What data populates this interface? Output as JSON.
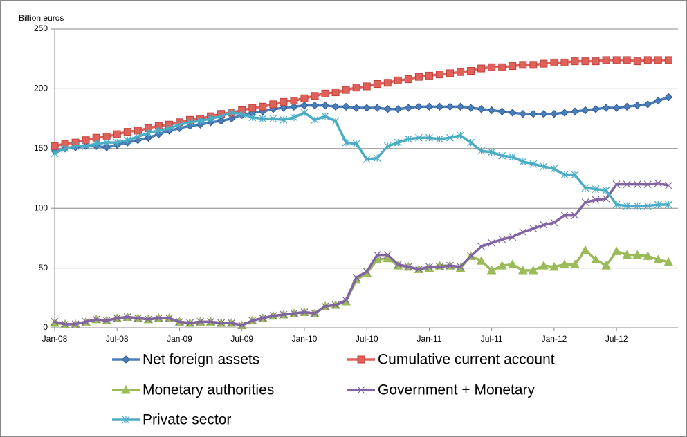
{
  "chart_data": {
    "type": "line",
    "y_label": "Billion euros",
    "categories": [
      "Jan-08",
      null,
      null,
      null,
      null,
      null,
      "Jul-08",
      null,
      null,
      null,
      null,
      null,
      "Jan-09",
      null,
      null,
      null,
      null,
      null,
      "Jul-09",
      null,
      null,
      null,
      null,
      null,
      "Jan-10",
      null,
      null,
      null,
      null,
      null,
      "Jul-10",
      null,
      null,
      null,
      null,
      null,
      "Jan-11",
      null,
      null,
      null,
      null,
      null,
      "Jul-11",
      null,
      null,
      null,
      null,
      null,
      "Jan-12",
      null,
      null,
      null,
      null,
      null,
      "Jul-12",
      null,
      null,
      null,
      null,
      null
    ],
    "ylim": [
      0,
      250
    ],
    "yticks": [
      0,
      50,
      100,
      150,
      200,
      250
    ],
    "grid": true,
    "series": [
      {
        "name": "Net foreign assets",
        "color": "#4a7ebb",
        "marker": "diamond",
        "values": [
          148,
          150,
          151,
          152,
          152,
          151,
          153,
          155,
          157,
          159,
          162,
          165,
          167,
          169,
          170,
          172,
          173,
          175,
          178,
          180,
          181,
          183,
          184,
          185,
          186,
          186,
          186,
          185,
          185,
          184,
          184,
          184,
          183,
          183,
          184,
          185,
          185,
          185,
          185,
          185,
          184,
          183,
          182,
          181,
          180,
          179,
          179,
          179,
          179,
          180,
          181,
          182,
          183,
          184,
          184,
          185,
          186,
          187,
          190,
          193
        ]
      },
      {
        "name": "Cumulative current account",
        "color": "#e0605a",
        "marker": "square",
        "values": [
          152,
          154,
          155,
          157,
          159,
          160,
          162,
          164,
          165,
          167,
          169,
          170,
          172,
          174,
          175,
          177,
          179,
          180,
          182,
          184,
          185,
          187,
          189,
          190,
          192,
          194,
          196,
          197,
          199,
          201,
          202,
          204,
          205,
          207,
          208,
          210,
          211,
          212,
          213,
          214,
          215,
          217,
          218,
          218,
          219,
          220,
          220,
          221,
          222,
          222,
          223,
          223,
          223,
          224,
          224,
          224,
          223,
          224,
          224,
          224
        ]
      },
      {
        "name": "Monetary authorities",
        "color": "#9bbb59",
        "marker": "triangle",
        "values": [
          4,
          3,
          3,
          5,
          7,
          6,
          8,
          9,
          8,
          7,
          8,
          8,
          5,
          4,
          5,
          5,
          4,
          4,
          2,
          6,
          8,
          10,
          11,
          12,
          13,
          12,
          18,
          19,
          22,
          40,
          46,
          57,
          58,
          52,
          51,
          49,
          50,
          52,
          52,
          50,
          60,
          56,
          48,
          52,
          53,
          48,
          48,
          52,
          51,
          53,
          53,
          65,
          57,
          52,
          64,
          61,
          61,
          60,
          57,
          55
        ]
      },
      {
        "name": "Government + Monetary",
        "color": "#8064a2",
        "marker": "x",
        "values": [
          5,
          3,
          3,
          5,
          7,
          6,
          8,
          9,
          8,
          7,
          8,
          8,
          5,
          4,
          5,
          5,
          4,
          4,
          2,
          6,
          8,
          10,
          11,
          12,
          13,
          12,
          18,
          19,
          23,
          42,
          47,
          61,
          61,
          53,
          51,
          49,
          51,
          51,
          52,
          51,
          60,
          68,
          71,
          74,
          76,
          80,
          83,
          86,
          88,
          94,
          94,
          105,
          107,
          108,
          120,
          120,
          120,
          120,
          121,
          119
        ]
      },
      {
        "name": "Private sector",
        "color": "#4bacc6",
        "marker": "star",
        "values": [
          146,
          150,
          152,
          152,
          154,
          155,
          155,
          157,
          160,
          163,
          165,
          167,
          170,
          172,
          173,
          175,
          177,
          180,
          179,
          176,
          175,
          175,
          174,
          176,
          180,
          174,
          177,
          173,
          155,
          154,
          141,
          142,
          152,
          155,
          158,
          159,
          159,
          158,
          159,
          161,
          155,
          148,
          147,
          144,
          143,
          139,
          137,
          135,
          133,
          128,
          128,
          117,
          116,
          115,
          103,
          102,
          102,
          102,
          103,
          103
        ]
      }
    ]
  }
}
